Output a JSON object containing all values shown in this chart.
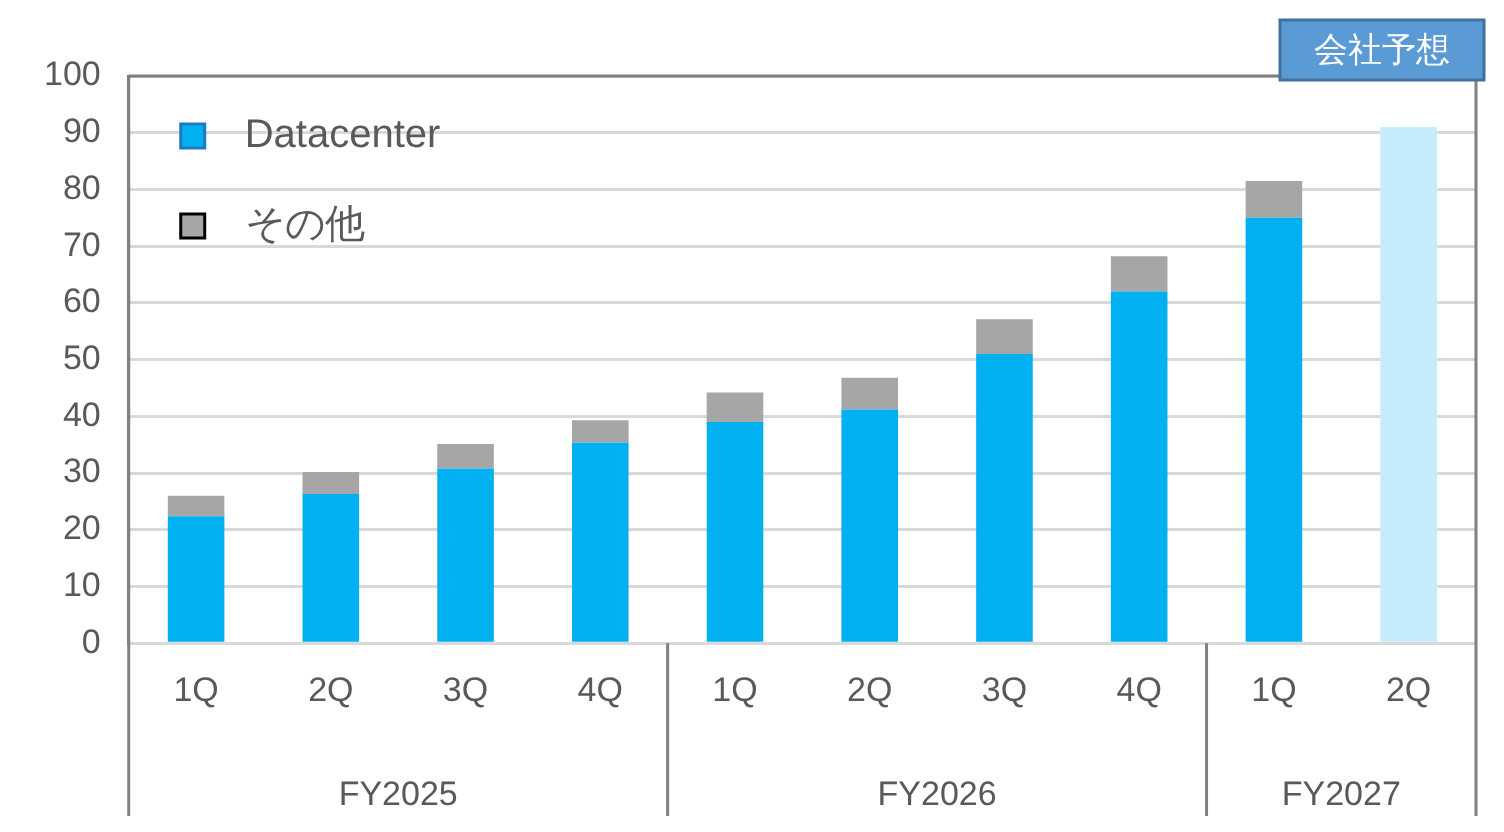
{
  "chart_data": {
    "type": "bar",
    "stacked": true,
    "categories": [
      "1Q",
      "2Q",
      "3Q",
      "4Q",
      "1Q",
      "2Q",
      "3Q",
      "4Q",
      "1Q",
      "2Q"
    ],
    "series": [
      {
        "name": "Datacenter",
        "color": "#00b0f0",
        "values": [
          22.4,
          26.3,
          30.8,
          35.4,
          39.0,
          41.2,
          51.0,
          62.0,
          75.0,
          null
        ]
      },
      {
        "name": "その他",
        "color": "#a6a6a6",
        "values": [
          3.6,
          3.9,
          4.3,
          3.9,
          5.2,
          5.6,
          6.1,
          6.2,
          6.5,
          null
        ]
      },
      {
        "color": "#c5ecfb",
        "values": [
          null,
          null,
          null,
          null,
          null,
          null,
          null,
          null,
          null,
          91
        ]
      }
    ],
    "annotations": [
      "FY2025",
      "FY2026",
      "FY2027",
      "会社予想"
    ],
    "ylim": [
      0,
      100
    ],
    "yticks": [
      0,
      10,
      20,
      30,
      40,
      50,
      60,
      70,
      80,
      90,
      100
    ],
    "grid": "y",
    "legend": "top left"
  }
}
